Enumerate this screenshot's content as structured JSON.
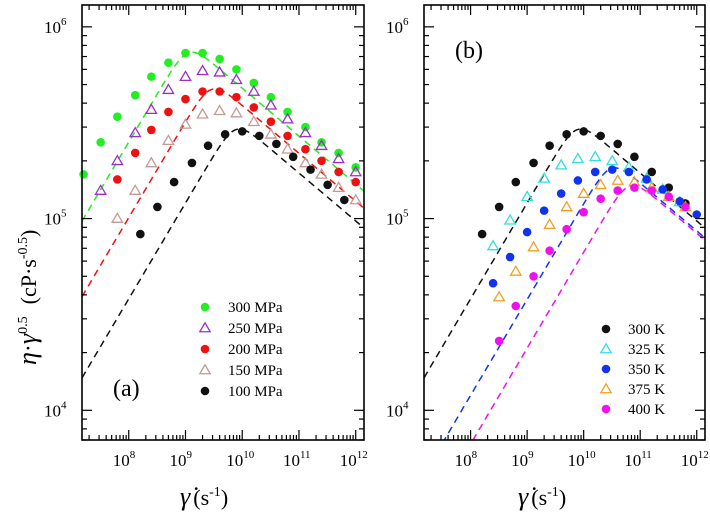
{
  "y_axis_title": {
    "eta": "η",
    "dot": "·",
    "gamma": "γ",
    "gamma_exp": "0.5",
    "units_open": "(cP",
    "units_dot": "·",
    "units_s": "s",
    "units_exp": "-0.5",
    "units_close": ")"
  },
  "x_axis_title": {
    "symbol": "γ̇",
    "units_open": "(s",
    "units_exp": "-1",
    "units_close": ")"
  },
  "chart_data": [
    {
      "type": "scatter",
      "panel_label": "(a)",
      "xscale": "log",
      "yscale": "log",
      "xlim": [
        15000000.0,
        1400000000000.0
      ],
      "ylim": [
        7000.0,
        1300000.0
      ],
      "x_ticks": [
        {
          "base": "10",
          "exp": "8",
          "value": 100000000.0
        },
        {
          "base": "10",
          "exp": "9",
          "value": 1000000000.0
        },
        {
          "base": "10",
          "exp": "10",
          "value": 10000000000.0
        },
        {
          "base": "10",
          "exp": "11",
          "value": 100000000000.0
        },
        {
          "base": "10",
          "exp": "12",
          "value": 1000000000000.0
        }
      ],
      "y_ticks": [
        {
          "base": "10",
          "exp": "4",
          "value": 10000.0
        },
        {
          "base": "10",
          "exp": "5",
          "value": 100000.0
        },
        {
          "base": "10",
          "exp": "6",
          "value": 1000000.0
        }
      ],
      "legend_position": "bottom-right",
      "series": [
        {
          "name": "300 MPa",
          "marker": "circle",
          "color": "#22ee22",
          "x": [
            16000000.0,
            32000000.0,
            63000000.0,
            130000000.0,
            250000000.0,
            500000000.0,
            1000000000.0,
            2000000000.0,
            4000000000.0,
            7900000000.0,
            16000000000.0,
            32000000000.0,
            63000000000.0,
            130000000000.0,
            250000000000.0,
            500000000000.0,
            1000000000000.0
          ],
          "y": [
            170000.0,
            250000.0,
            340000.0,
            440000.0,
            550000.0,
            650000.0,
            730000.0,
            730000.0,
            680000.0,
            600000.0,
            510000.0,
            430000.0,
            360000.0,
            300000.0,
            250000.0,
            220000.0,
            185000.0
          ]
        },
        {
          "name": "250 MPa",
          "marker": "triangle-open",
          "color": "#9b30c8",
          "x": [
            32000000.0,
            63000000.0,
            130000000.0,
            250000000.0,
            500000000.0,
            1000000000.0,
            2000000000.0,
            4000000000.0,
            7900000000.0,
            16000000000.0,
            32000000000.0,
            63000000000.0,
            130000000000.0,
            250000000000.0,
            500000000000.0,
            1000000000000.0
          ],
          "y": [
            140000.0,
            200000.0,
            280000.0,
            370000.0,
            470000.0,
            550000.0,
            590000.0,
            580000.0,
            530000.0,
            460000.0,
            390000.0,
            330000.0,
            280000.0,
            240000.0,
            205000.0,
            175000.0
          ]
        },
        {
          "name": "200 MPa",
          "marker": "circle",
          "color": "#ee1111",
          "x": [
            63000000.0,
            130000000.0,
            250000000.0,
            500000000.0,
            1000000000.0,
            2000000000.0,
            4000000000.0,
            7900000000.0,
            16000000000.0,
            32000000000.0,
            63000000000.0,
            130000000000.0,
            250000000000.0,
            500000000000.0,
            1000000000000.0
          ],
          "y": [
            160000.0,
            220000.0,
            290000.0,
            360000.0,
            420000.0,
            460000.0,
            460000.0,
            430000.0,
            380000.0,
            320000.0,
            270000.0,
            230000.0,
            200000.0,
            175000.0,
            155000.0
          ]
        },
        {
          "name": "150 MPa",
          "marker": "triangle-open",
          "color": "#c49a95",
          "x": [
            63000000.0,
            130000000.0,
            250000000.0,
            500000000.0,
            1000000000.0,
            2000000000.0,
            4000000000.0,
            7900000000.0,
            16000000000.0,
            32000000000.0,
            63000000000.0,
            130000000000.0,
            250000000000.0,
            500000000000.0,
            1000000000000.0
          ],
          "y": [
            100000.0,
            140000.0,
            195000.0,
            255000.0,
            310000.0,
            350000.0,
            365000.0,
            355000.0,
            320000.0,
            275000.0,
            230000.0,
            195000.0,
            170000.0,
            145000.0,
            125000.0
          ]
        },
        {
          "name": "100 MPa",
          "marker": "circle",
          "color": "#111111",
          "x": [
            160000000.0,
            320000000.0,
            630000000.0,
            1300000000.0,
            2500000000.0,
            5000000000.0,
            10000000000.0,
            20000000000.0,
            40000000000.0,
            79000000000.0,
            160000000000.0,
            320000000000.0,
            630000000000.0
          ],
          "y": [
            83000.0,
            115000.0,
            155000.0,
            195000.0,
            240000.0,
            275000.0,
            285000.0,
            270000.0,
            245000.0,
            210000.0,
            180000.0,
            150000.0,
            125000.0
          ]
        }
      ],
      "fits": [
        {
          "for": "300 MPa",
          "color": "#22ee22",
          "peak_x": 1100000000.0,
          "peak_y": 730000.0,
          "left_slope": 0.5,
          "right_slope": -0.25,
          "sharpness": 2
        },
        {
          "for": "200 MPa",
          "color": "#ee1111",
          "peak_x": 2800000000.0,
          "peak_y": 470000.0,
          "left_slope": 0.5,
          "right_slope": -0.25,
          "sharpness": 2
        },
        {
          "for": "100 MPa",
          "color": "#111111",
          "peak_x": 7500000000.0,
          "peak_y": 290000.0,
          "left_slope": 0.5,
          "right_slope": -0.25,
          "sharpness": 2
        }
      ]
    },
    {
      "type": "scatter",
      "panel_label": "(b)",
      "xscale": "log",
      "yscale": "log",
      "xlim": [
        15000000.0,
        1400000000000.0
      ],
      "ylim": [
        7000.0,
        1300000.0
      ],
      "x_ticks": [
        {
          "base": "10",
          "exp": "8",
          "value": 100000000.0
        },
        {
          "base": "10",
          "exp": "9",
          "value": 1000000000.0
        },
        {
          "base": "10",
          "exp": "10",
          "value": 10000000000.0
        },
        {
          "base": "10",
          "exp": "11",
          "value": 100000000000.0
        },
        {
          "base": "10",
          "exp": "12",
          "value": 1000000000000.0
        }
      ],
      "y_ticks": [
        {
          "base": "10",
          "exp": "4",
          "value": 10000.0
        },
        {
          "base": "10",
          "exp": "5",
          "value": 100000.0
        },
        {
          "base": "10",
          "exp": "6",
          "value": 1000000.0
        }
      ],
      "legend_position": "bottom-right",
      "series": [
        {
          "name": "300 K",
          "marker": "circle",
          "color": "#111111",
          "x": [
            160000000.0,
            320000000.0,
            630000000.0,
            1300000000.0,
            2500000000.0,
            5000000000.0,
            10000000000.0,
            20000000000.0,
            40000000000.0,
            79000000000.0,
            160000000000.0,
            320000000000.0,
            630000000000.0
          ],
          "y": [
            83000.0,
            115000.0,
            155000.0,
            195000.0,
            240000.0,
            275000.0,
            285000.0,
            270000.0,
            245000.0,
            210000.0,
            175000.0,
            145000.0,
            120000.0
          ]
        },
        {
          "name": "325 K",
          "marker": "triangle-open",
          "color": "#33dddd",
          "x": [
            250000000.0,
            500000000.0,
            1000000000.0,
            2000000000.0,
            4000000000.0,
            7900000000.0,
            16000000000.0,
            32000000000.0,
            63000000000.0,
            130000000000.0,
            250000000000.0,
            500000000000.0
          ],
          "y": [
            72000.0,
            98000.0,
            130000.0,
            162000.0,
            190000.0,
            205000.0,
            210000.0,
            200000.0,
            185000.0,
            162000.0,
            142000.0,
            122000.0
          ]
        },
        {
          "name": "350 K",
          "marker": "circle",
          "color": "#1133ee",
          "x": [
            250000000.0,
            500000000.0,
            1000000000.0,
            2000000000.0,
            4000000000.0,
            7900000000.0,
            16000000000.0,
            32000000000.0,
            63000000000.0,
            130000000000.0,
            250000000000.0,
            500000000000.0,
            1000000000000.0
          ],
          "y": [
            46000.0,
            63000.0,
            85000.0,
            110000.0,
            135000.0,
            158000.0,
            175000.0,
            180000.0,
            175000.0,
            160000.0,
            142000.0,
            123000.0,
            105000.0
          ]
        },
        {
          "name": "375 K",
          "marker": "triangle-open",
          "color": "#f0a020",
          "x": [
            320000000.0,
            630000000.0,
            1300000000.0,
            2500000000.0,
            5000000000.0,
            10000000000.0,
            20000000000.0,
            40000000000.0,
            79000000000.0,
            160000000000.0,
            320000000000.0,
            630000000000.0
          ],
          "y": [
            39000.0,
            53000.0,
            71000.0,
            93000.0,
            115000.0,
            135000.0,
            150000.0,
            158000.0,
            155000.0,
            145000.0,
            130000.0,
            115000.0
          ]
        },
        {
          "name": "400 K",
          "marker": "circle",
          "color": "#ee11ee",
          "x": [
            320000000.0,
            630000000.0,
            1300000000.0,
            2500000000.0,
            5000000000.0,
            10000000000.0,
            20000000000.0,
            40000000000.0,
            79000000000.0,
            160000000000.0,
            320000000000.0,
            630000000000.0
          ],
          "y": [
            23000.0,
            35000.0,
            50000.0,
            68000.0,
            88000.0,
            108000.0,
            127000.0,
            140000.0,
            145000.0,
            140000.0,
            130000.0,
            115000.0
          ]
        }
      ],
      "fits": [
        {
          "for": "300 K",
          "color": "#111111",
          "peak_x": 7500000000.0,
          "peak_y": 290000.0,
          "left_slope": 0.5,
          "right_slope": -0.25,
          "sharpness": 2
        },
        {
          "for": "350 K",
          "color": "#1133ee",
          "peak_x": 30000000000.0,
          "peak_y": 182000.0,
          "left_slope": 0.5,
          "right_slope": -0.25,
          "sharpness": 2
        },
        {
          "for": "400 K",
          "color": "#ee11ee",
          "peak_x": 63000000000.0,
          "peak_y": 147000.0,
          "left_slope": 0.5,
          "right_slope": -0.25,
          "sharpness": 2
        }
      ]
    }
  ]
}
